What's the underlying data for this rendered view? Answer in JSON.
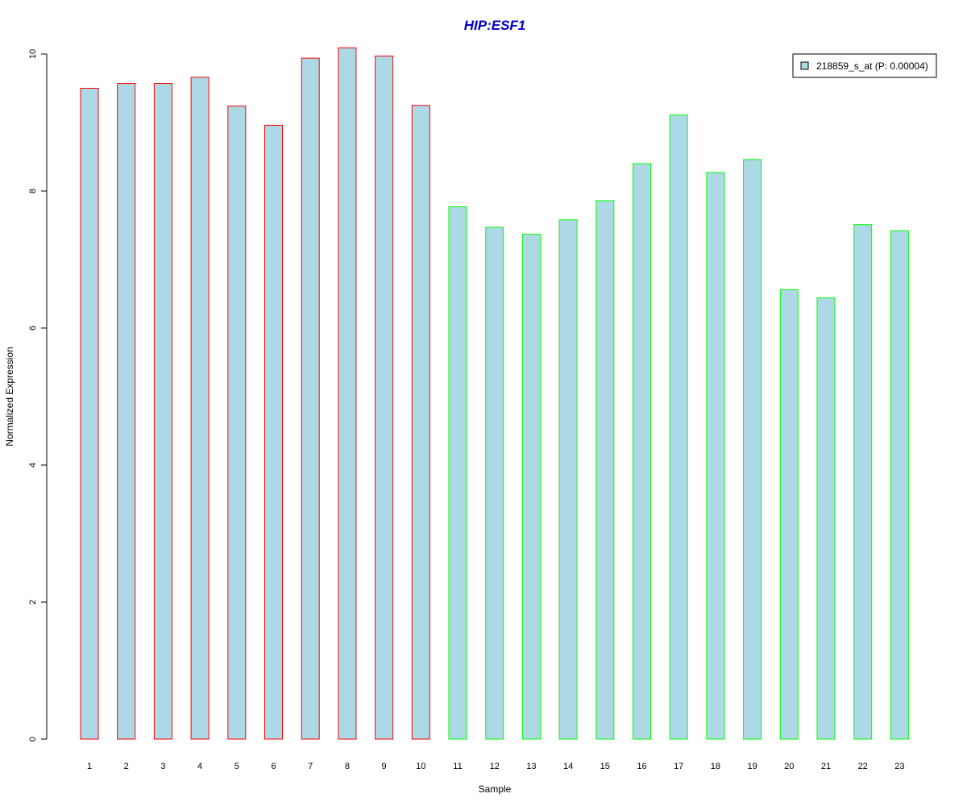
{
  "chart_data": {
    "type": "bar",
    "title": "HIP:ESF1",
    "xlabel": "Sample",
    "ylabel": "Normalized Expression",
    "ylim": [
      0,
      10
    ],
    "yticks": [
      "0",
      "2",
      "4",
      "6",
      "8",
      "10"
    ],
    "grid": false,
    "legend_position": "top-right",
    "categories": [
      "1",
      "2",
      "3",
      "4",
      "5",
      "6",
      "7",
      "8",
      "9",
      "10",
      "11",
      "12",
      "13",
      "14",
      "15",
      "16",
      "17",
      "18",
      "19",
      "20",
      "21",
      "22",
      "23"
    ],
    "series": [
      {
        "name": "218859_s_at (P: 0.00004)",
        "fill_color": "#add8e6",
        "values": [
          9.5,
          9.57,
          9.57,
          9.66,
          9.24,
          8.96,
          9.94,
          10.09,
          9.97,
          9.25,
          7.77,
          7.47,
          7.37,
          7.58,
          7.86,
          8.4,
          9.11,
          8.27,
          8.46,
          6.56,
          6.44,
          7.51,
          7.42
        ],
        "border_colors": [
          "#ff0000",
          "#ff0000",
          "#ff0000",
          "#ff0000",
          "#ff0000",
          "#ff0000",
          "#ff0000",
          "#ff0000",
          "#ff0000",
          "#ff0000",
          "#00ff00",
          "#00ff00",
          "#00ff00",
          "#00ff00",
          "#00ff00",
          "#00ff00",
          "#00ff00",
          "#00ff00",
          "#00ff00",
          "#00ff00",
          "#00ff00",
          "#00ff00",
          "#00ff00"
        ]
      }
    ]
  }
}
